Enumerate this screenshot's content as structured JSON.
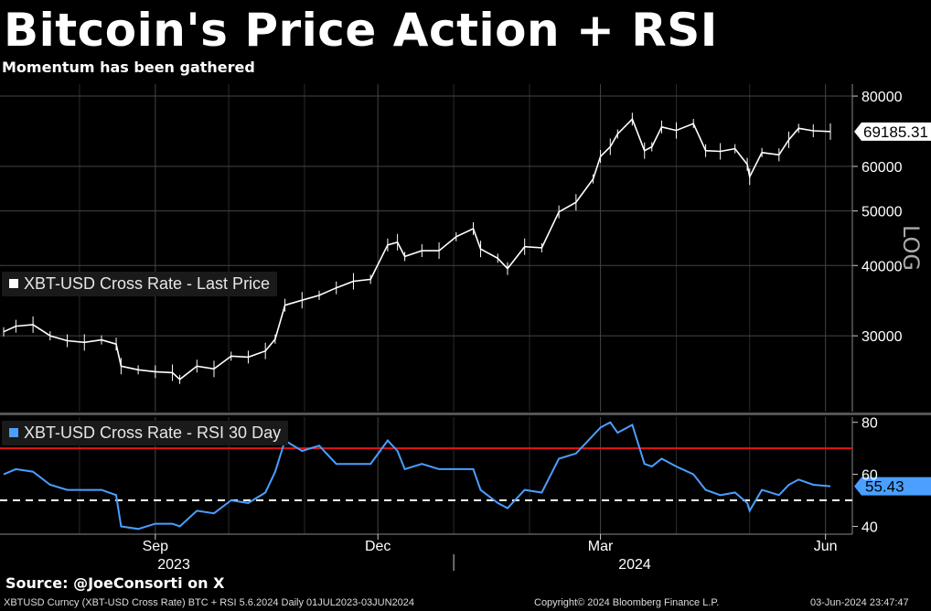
{
  "title": "Bitcoin's Price Action + RSI",
  "subtitle": "Momentum has been gathered",
  "source": "Source: @JoeConsorti on X",
  "footer": {
    "left": "XBTUSD Curncy (XBT-USD Cross Rate) BTC + RSI 5.6.2024  Daily 01JUL2023-03JUN2024",
    "center": "Copyright© 2024 Bloomberg Finance L.P.",
    "right": "03-Jun-2024 23:47:47"
  },
  "colors": {
    "price": "#ffffff",
    "rsi": "#4a9fff",
    "overbought": "#e31414",
    "oversold_line": "#ffffff",
    "background": "#000000",
    "grid": "#444444"
  },
  "chart_data": [
    {
      "type": "line",
      "panel": "price",
      "series": [
        {
          "name": "XBT-USD Cross Rate - Last Price"
        }
      ],
      "scale": "log",
      "ylim": [
        22000,
        84000
      ],
      "yticks": [
        30000,
        40000,
        50000,
        60000,
        80000
      ],
      "ytick_labels": [
        "30000",
        "40000",
        "50000",
        "60000",
        "80000"
      ],
      "y_axis_label": "LOG",
      "last_value_label": "69185.31",
      "last_value": 69185.31,
      "x_range": [
        "2023-07-01",
        "2024-06-03"
      ],
      "points": [
        [
          "2023-07-01",
          30500
        ],
        [
          "2023-07-06",
          31200
        ],
        [
          "2023-07-13",
          31400
        ],
        [
          "2023-07-20",
          30000
        ],
        [
          "2023-07-27",
          29400
        ],
        [
          "2023-08-03",
          29200
        ],
        [
          "2023-08-10",
          29500
        ],
        [
          "2023-08-16",
          29000
        ],
        [
          "2023-08-18",
          26500
        ],
        [
          "2023-08-25",
          26100
        ],
        [
          "2023-09-01",
          25900
        ],
        [
          "2023-09-08",
          25800
        ],
        [
          "2023-09-11",
          25100
        ],
        [
          "2023-09-18",
          26500
        ],
        [
          "2023-09-25",
          26200
        ],
        [
          "2023-10-02",
          27600
        ],
        [
          "2023-10-09",
          27500
        ],
        [
          "2023-10-16",
          28200
        ],
        [
          "2023-10-20",
          29600
        ],
        [
          "2023-10-24",
          34000
        ],
        [
          "2023-10-31",
          34700
        ],
        [
          "2023-11-07",
          35400
        ],
        [
          "2023-11-14",
          36500
        ],
        [
          "2023-11-21",
          37500
        ],
        [
          "2023-11-28",
          37800
        ],
        [
          "2023-12-05",
          43500
        ],
        [
          "2023-12-09",
          44000
        ],
        [
          "2023-12-12",
          41500
        ],
        [
          "2023-12-19",
          42500
        ],
        [
          "2023-12-26",
          42500
        ],
        [
          "2024-01-02",
          45000
        ],
        [
          "2024-01-09",
          46500
        ],
        [
          "2024-01-12",
          42800
        ],
        [
          "2024-01-19",
          41200
        ],
        [
          "2024-01-23",
          39500
        ],
        [
          "2024-01-30",
          43200
        ],
        [
          "2024-02-06",
          43000
        ],
        [
          "2024-02-13",
          49800
        ],
        [
          "2024-02-20",
          51800
        ],
        [
          "2024-02-27",
          57000
        ],
        [
          "2024-03-01",
          62500
        ],
        [
          "2024-03-05",
          65000
        ],
        [
          "2024-03-08",
          68500
        ],
        [
          "2024-03-14",
          72800
        ],
        [
          "2024-03-19",
          64000
        ],
        [
          "2024-03-22",
          65000
        ],
        [
          "2024-03-26",
          70500
        ],
        [
          "2024-04-01",
          69500
        ],
        [
          "2024-04-08",
          71500
        ],
        [
          "2024-04-13",
          64000
        ],
        [
          "2024-04-19",
          63800
        ],
        [
          "2024-04-25",
          64500
        ],
        [
          "2024-04-30",
          60500
        ],
        [
          "2024-05-01",
          57500
        ],
        [
          "2024-05-06",
          63500
        ],
        [
          "2024-05-13",
          62900
        ],
        [
          "2024-05-17",
          66900
        ],
        [
          "2024-05-21",
          70100
        ],
        [
          "2024-05-27",
          69400
        ],
        [
          "2024-06-03",
          69185.31
        ]
      ]
    },
    {
      "type": "line",
      "panel": "rsi",
      "series": [
        {
          "name": "XBT-USD Cross Rate - RSI 30 Day"
        }
      ],
      "ylim": [
        37,
        82
      ],
      "yticks": [
        40,
        60,
        80
      ],
      "ytick_labels": [
        "40",
        "60",
        "80"
      ],
      "overbought_line": 70,
      "oversold_line": 50,
      "last_value_label": "55.43",
      "last_value": 55.43,
      "x_range": [
        "2023-07-01",
        "2024-06-03"
      ],
      "points": [
        [
          "2023-07-01",
          60
        ],
        [
          "2023-07-06",
          62
        ],
        [
          "2023-07-13",
          61
        ],
        [
          "2023-07-20",
          56
        ],
        [
          "2023-07-27",
          54
        ],
        [
          "2023-08-03",
          54
        ],
        [
          "2023-08-10",
          54
        ],
        [
          "2023-08-16",
          52
        ],
        [
          "2023-08-18",
          40
        ],
        [
          "2023-08-25",
          39
        ],
        [
          "2023-09-01",
          41
        ],
        [
          "2023-09-08",
          41
        ],
        [
          "2023-09-11",
          40
        ],
        [
          "2023-09-18",
          46
        ],
        [
          "2023-09-25",
          45
        ],
        [
          "2023-10-02",
          50
        ],
        [
          "2023-10-09",
          49
        ],
        [
          "2023-10-16",
          53
        ],
        [
          "2023-10-20",
          61
        ],
        [
          "2023-10-24",
          73
        ],
        [
          "2023-10-31",
          69
        ],
        [
          "2023-11-07",
          71
        ],
        [
          "2023-11-14",
          64
        ],
        [
          "2023-11-21",
          64
        ],
        [
          "2023-11-28",
          64
        ],
        [
          "2023-12-05",
          73
        ],
        [
          "2023-12-09",
          69
        ],
        [
          "2023-12-12",
          62
        ],
        [
          "2023-12-19",
          64
        ],
        [
          "2023-12-26",
          62
        ],
        [
          "2024-01-02",
          62
        ],
        [
          "2024-01-09",
          62
        ],
        [
          "2024-01-12",
          54
        ],
        [
          "2024-01-19",
          49
        ],
        [
          "2024-01-23",
          47
        ],
        [
          "2024-01-30",
          54
        ],
        [
          "2024-02-06",
          53
        ],
        [
          "2024-02-13",
          66
        ],
        [
          "2024-02-20",
          68
        ],
        [
          "2024-02-27",
          75
        ],
        [
          "2024-03-01",
          78
        ],
        [
          "2024-03-05",
          80
        ],
        [
          "2024-03-08",
          76
        ],
        [
          "2024-03-14",
          79
        ],
        [
          "2024-03-19",
          64
        ],
        [
          "2024-03-22",
          63
        ],
        [
          "2024-03-26",
          66
        ],
        [
          "2024-04-01",
          63
        ],
        [
          "2024-04-08",
          60
        ],
        [
          "2024-04-13",
          54
        ],
        [
          "2024-04-19",
          52
        ],
        [
          "2024-04-25",
          53
        ],
        [
          "2024-04-30",
          49
        ],
        [
          "2024-05-01",
          46
        ],
        [
          "2024-05-06",
          54
        ],
        [
          "2024-05-13",
          52
        ],
        [
          "2024-05-17",
          56
        ],
        [
          "2024-05-21",
          58
        ],
        [
          "2024-05-27",
          56
        ],
        [
          "2024-06-03",
          55.43
        ]
      ]
    }
  ],
  "x_axis": {
    "month_ticks": [
      {
        "label": "Sep",
        "date": "2023-09-01"
      },
      {
        "label": "Dec",
        "date": "2023-12-01"
      },
      {
        "label": "Mar",
        "date": "2024-03-01"
      },
      {
        "label": "Jun",
        "date": "2024-06-01"
      }
    ],
    "year_labels": [
      {
        "label": "2023",
        "date": "2023-10-01"
      },
      {
        "label": "2024",
        "date": "2024-03-15"
      }
    ],
    "year_divider": "2024-01-01"
  }
}
